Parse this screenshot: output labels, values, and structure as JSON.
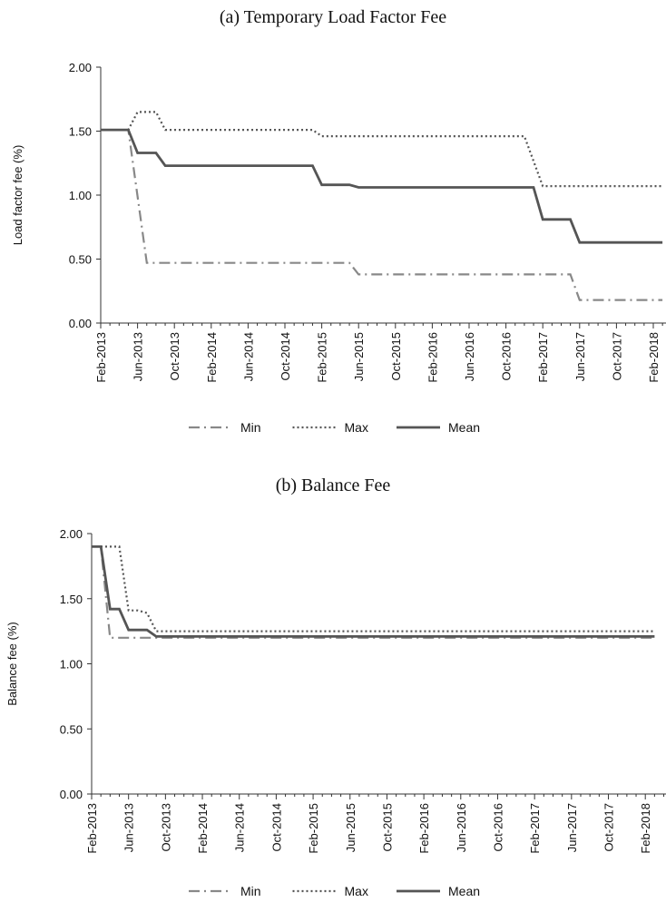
{
  "chart_data": [
    {
      "type": "line",
      "title": "(a) Temporary Load Factor Fee",
      "ylabel": "Load factor fee (%)",
      "ylim": [
        0,
        2
      ],
      "yticks": [
        "0.00",
        "0.50",
        "1.00",
        "1.50",
        "2.00"
      ],
      "x_tick_labels": [
        "Feb-2013",
        "Jun-2013",
        "Oct-2013",
        "Feb-2014",
        "Jun-2014",
        "Oct-2014",
        "Feb-2015",
        "Jun-2015",
        "Oct-2015",
        "Feb-2016",
        "Jun-2016",
        "Oct-2016",
        "Feb-2017",
        "Jun-2017",
        "Oct-2017",
        "Feb-2018"
      ],
      "legend_position": "bottom",
      "series": [
        {
          "name": "Min",
          "style": "dashdot",
          "color": "#888888",
          "points": [
            [
              "2013-02",
              1.51
            ],
            [
              "2013-05",
              1.51
            ],
            [
              "2013-07",
              0.47
            ],
            [
              "2015-05",
              0.47
            ],
            [
              "2015-06",
              0.38
            ],
            [
              "2017-05",
              0.38
            ],
            [
              "2017-06",
              0.18
            ],
            [
              "2018-03",
              0.18
            ]
          ]
        },
        {
          "name": "Max",
          "style": "dotted",
          "color": "#555555",
          "points": [
            [
              "2013-02",
              1.51
            ],
            [
              "2013-05",
              1.51
            ],
            [
              "2013-06",
              1.65
            ],
            [
              "2013-08",
              1.65
            ],
            [
              "2013-09",
              1.51
            ],
            [
              "2015-01",
              1.51
            ],
            [
              "2015-02",
              1.46
            ],
            [
              "2016-12",
              1.46
            ],
            [
              "2017-02",
              1.07
            ],
            [
              "2018-03",
              1.07
            ]
          ]
        },
        {
          "name": "Mean",
          "style": "solid",
          "color": "#555555",
          "points": [
            [
              "2013-02",
              1.51
            ],
            [
              "2013-05",
              1.51
            ],
            [
              "2013-06",
              1.33
            ],
            [
              "2013-08",
              1.33
            ],
            [
              "2013-09",
              1.23
            ],
            [
              "2015-01",
              1.23
            ],
            [
              "2015-02",
              1.08
            ],
            [
              "2015-05",
              1.08
            ],
            [
              "2015-06",
              1.06
            ],
            [
              "2017-01",
              1.06
            ],
            [
              "2017-02",
              0.81
            ],
            [
              "2017-05",
              0.81
            ],
            [
              "2017-06",
              0.63
            ],
            [
              "2018-03",
              0.63
            ]
          ]
        }
      ]
    },
    {
      "type": "line",
      "title": "(b) Balance Fee",
      "ylabel": "Balance fee (%)",
      "ylim": [
        0,
        2
      ],
      "yticks": [
        "0.00",
        "0.50",
        "1.00",
        "1.50",
        "2.00"
      ],
      "x_tick_labels": [
        "Feb-2013",
        "Jun-2013",
        "Oct-2013",
        "Feb-2014",
        "Jun-2014",
        "Oct-2014",
        "Feb-2015",
        "Jun-2015",
        "Oct-2015",
        "Feb-2016",
        "Jun-2016",
        "Oct-2016",
        "Feb-2017",
        "Jun-2017",
        "Oct-2017",
        "Feb-2018"
      ],
      "legend_position": "bottom",
      "series": [
        {
          "name": "Min",
          "style": "dashdot",
          "color": "#888888",
          "points": [
            [
              "2013-02",
              1.9
            ],
            [
              "2013-03",
              1.9
            ],
            [
              "2013-04",
              1.2
            ],
            [
              "2018-03",
              1.2
            ]
          ]
        },
        {
          "name": "Max",
          "style": "dotted",
          "color": "#555555",
          "points": [
            [
              "2013-02",
              1.9
            ],
            [
              "2013-05",
              1.9
            ],
            [
              "2013-06",
              1.41
            ],
            [
              "2013-07",
              1.41
            ],
            [
              "2013-08",
              1.39
            ],
            [
              "2013-09",
              1.25
            ],
            [
              "2018-03",
              1.25
            ]
          ]
        },
        {
          "name": "Mean",
          "style": "solid",
          "color": "#555555",
          "points": [
            [
              "2013-02",
              1.9
            ],
            [
              "2013-03",
              1.9
            ],
            [
              "2013-04",
              1.42
            ],
            [
              "2013-05",
              1.42
            ],
            [
              "2013-06",
              1.26
            ],
            [
              "2013-08",
              1.26
            ],
            [
              "2013-09",
              1.21
            ],
            [
              "2018-03",
              1.21
            ]
          ]
        }
      ]
    }
  ]
}
